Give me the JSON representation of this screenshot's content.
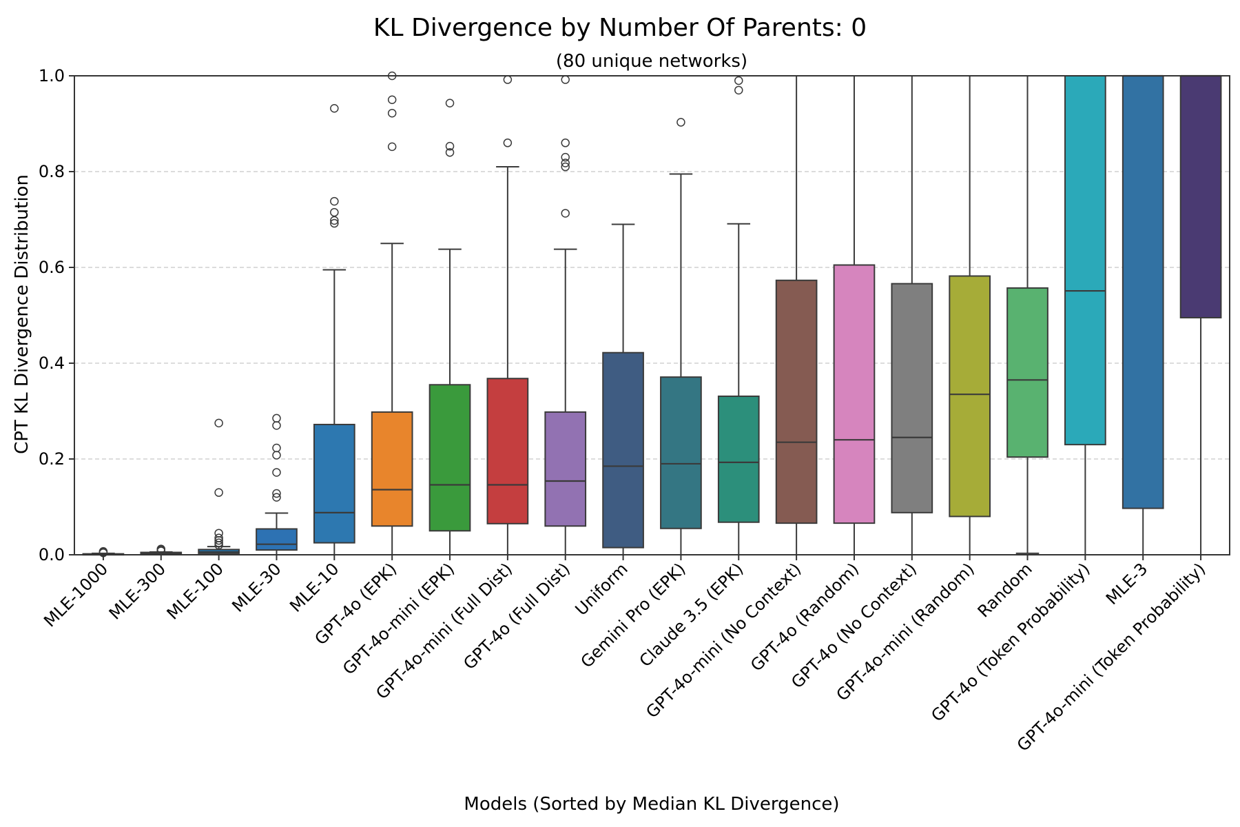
{
  "chart_data": {
    "type": "box",
    "title": "KL Divergence by Number Of Parents: 0",
    "subtitle": "(80 unique networks)",
    "xlabel": "Models (Sorted by Median KL Divergence)",
    "ylabel": "CPT KL Divergence Distribution",
    "ylim": [
      0,
      1.0
    ],
    "yticks": [
      "0.0",
      "0.2",
      "0.4",
      "0.6",
      "0.8",
      "1.0"
    ],
    "grid": "horizontal-dashed",
    "series": [
      {
        "name": "MLE-1000",
        "color": "#1f77b4",
        "q1": 0.0,
        "median": 0.001,
        "q3": 0.002,
        "whisker_low": 0.0,
        "whisker_high": 0.003,
        "fliers": [
          0.004,
          0.006,
          0.007
        ]
      },
      {
        "name": "MLE-300",
        "color": "#1f77b4",
        "q1": 0.001,
        "median": 0.003,
        "q3": 0.005,
        "whisker_low": 0.0,
        "whisker_high": 0.006,
        "fliers": [
          0.008,
          0.01,
          0.012
        ]
      },
      {
        "name": "MLE-100",
        "color": "#1f77b4",
        "q1": 0.003,
        "median": 0.006,
        "q3": 0.011,
        "whisker_low": 0.0,
        "whisker_high": 0.017,
        "fliers": [
          0.02,
          0.025,
          0.03,
          0.035,
          0.045,
          0.13,
          0.275
        ]
      },
      {
        "name": "MLE-30",
        "color": "#2d72b3",
        "q1": 0.01,
        "median": 0.022,
        "q3": 0.054,
        "whisker_low": 0.0,
        "whisker_high": 0.087,
        "fliers": [
          0.12,
          0.128,
          0.172,
          0.208,
          0.223,
          0.27,
          0.285
        ]
      },
      {
        "name": "MLE-10",
        "color": "#2d78b0",
        "q1": 0.025,
        "median": 0.088,
        "q3": 0.272,
        "whisker_low": 0.0,
        "whisker_high": 0.595,
        "fliers": [
          0.692,
          0.698,
          0.715,
          0.738,
          0.932
        ]
      },
      {
        "name": "GPT-4o (EPK)",
        "color": "#e8852c",
        "q1": 0.06,
        "median": 0.136,
        "q3": 0.298,
        "whisker_low": 0.0,
        "whisker_high": 0.65,
        "fliers": [
          0.852,
          0.922,
          0.95,
          1.0
        ]
      },
      {
        "name": "GPT-4o-mini (EPK)",
        "color": "#3a9a3c",
        "q1": 0.05,
        "median": 0.146,
        "q3": 0.355,
        "whisker_low": 0.0,
        "whisker_high": 0.638,
        "fliers": [
          0.84,
          0.853,
          0.943
        ]
      },
      {
        "name": "GPT-4o-mini (Full Dist)",
        "color": "#c43e3f",
        "q1": 0.065,
        "median": 0.146,
        "q3": 0.368,
        "whisker_low": 0.0,
        "whisker_high": 0.81,
        "fliers": [
          0.86,
          0.992
        ]
      },
      {
        "name": "GPT-4o (Full Dist)",
        "color": "#9272b2",
        "q1": 0.06,
        "median": 0.154,
        "q3": 0.298,
        "whisker_low": 0.0,
        "whisker_high": 0.638,
        "fliers": [
          0.713,
          0.81,
          0.818,
          0.83,
          0.86,
          0.992
        ]
      },
      {
        "name": "Uniform",
        "color": "#3f5c82",
        "q1": 0.015,
        "median": 0.185,
        "q3": 0.422,
        "whisker_low": 0.0,
        "whisker_high": 0.69,
        "fliers": []
      },
      {
        "name": "Gemini Pro (EPK)",
        "color": "#347683",
        "q1": 0.055,
        "median": 0.19,
        "q3": 0.371,
        "whisker_low": 0.0,
        "whisker_high": 0.795,
        "fliers": [
          0.903
        ]
      },
      {
        "name": "Claude 3.5 (EPK)",
        "color": "#2c8f7b",
        "q1": 0.068,
        "median": 0.193,
        "q3": 0.331,
        "whisker_low": 0.0,
        "whisker_high": 0.691,
        "fliers": [
          0.97,
          0.99
        ]
      },
      {
        "name": "GPT-4o-mini (No Context)",
        "color": "#855b52",
        "q1": 0.066,
        "median": 0.235,
        "q3": 0.573,
        "whisker_low": 0.0,
        "whisker_high": 1.0,
        "fliers": []
      },
      {
        "name": "GPT-4o (Random)",
        "color": "#d685be",
        "q1": 0.066,
        "median": 0.24,
        "q3": 0.605,
        "whisker_low": 0.0,
        "whisker_high": 1.0,
        "fliers": []
      },
      {
        "name": "GPT-4o (No Context)",
        "color": "#7f7f7f",
        "q1": 0.088,
        "median": 0.245,
        "q3": 0.566,
        "whisker_low": 0.0,
        "whisker_high": 1.0,
        "fliers": []
      },
      {
        "name": "GPT-4o-mini (Random)",
        "color": "#a6ac38",
        "q1": 0.08,
        "median": 0.335,
        "q3": 0.582,
        "whisker_low": 0.0,
        "whisker_high": 1.0,
        "fliers": []
      },
      {
        "name": "Random",
        "color": "#59b270",
        "q1": 0.204,
        "median": 0.365,
        "q3": 0.557,
        "whisker_low": 0.003,
        "whisker_high": 1.0,
        "fliers": []
      },
      {
        "name": "GPT-4o (Token Probability)",
        "color": "#2ba9b9",
        "q1": 0.23,
        "median": 0.551,
        "q3": 1.0,
        "whisker_low": 0.0,
        "whisker_high": 1.0,
        "fliers": []
      },
      {
        "name": "MLE-3",
        "color": "#3272a3",
        "q1": 0.097,
        "median": 1.0,
        "q3": 1.0,
        "whisker_low": 0.0,
        "whisker_high": 1.0,
        "fliers": []
      },
      {
        "name": "GPT-4o-mini (Token Probability)",
        "color": "#4a3a72",
        "q1": 0.495,
        "median": 1.0,
        "q3": 1.0,
        "whisker_low": 0.0,
        "whisker_high": 1.0,
        "fliers": []
      }
    ]
  }
}
